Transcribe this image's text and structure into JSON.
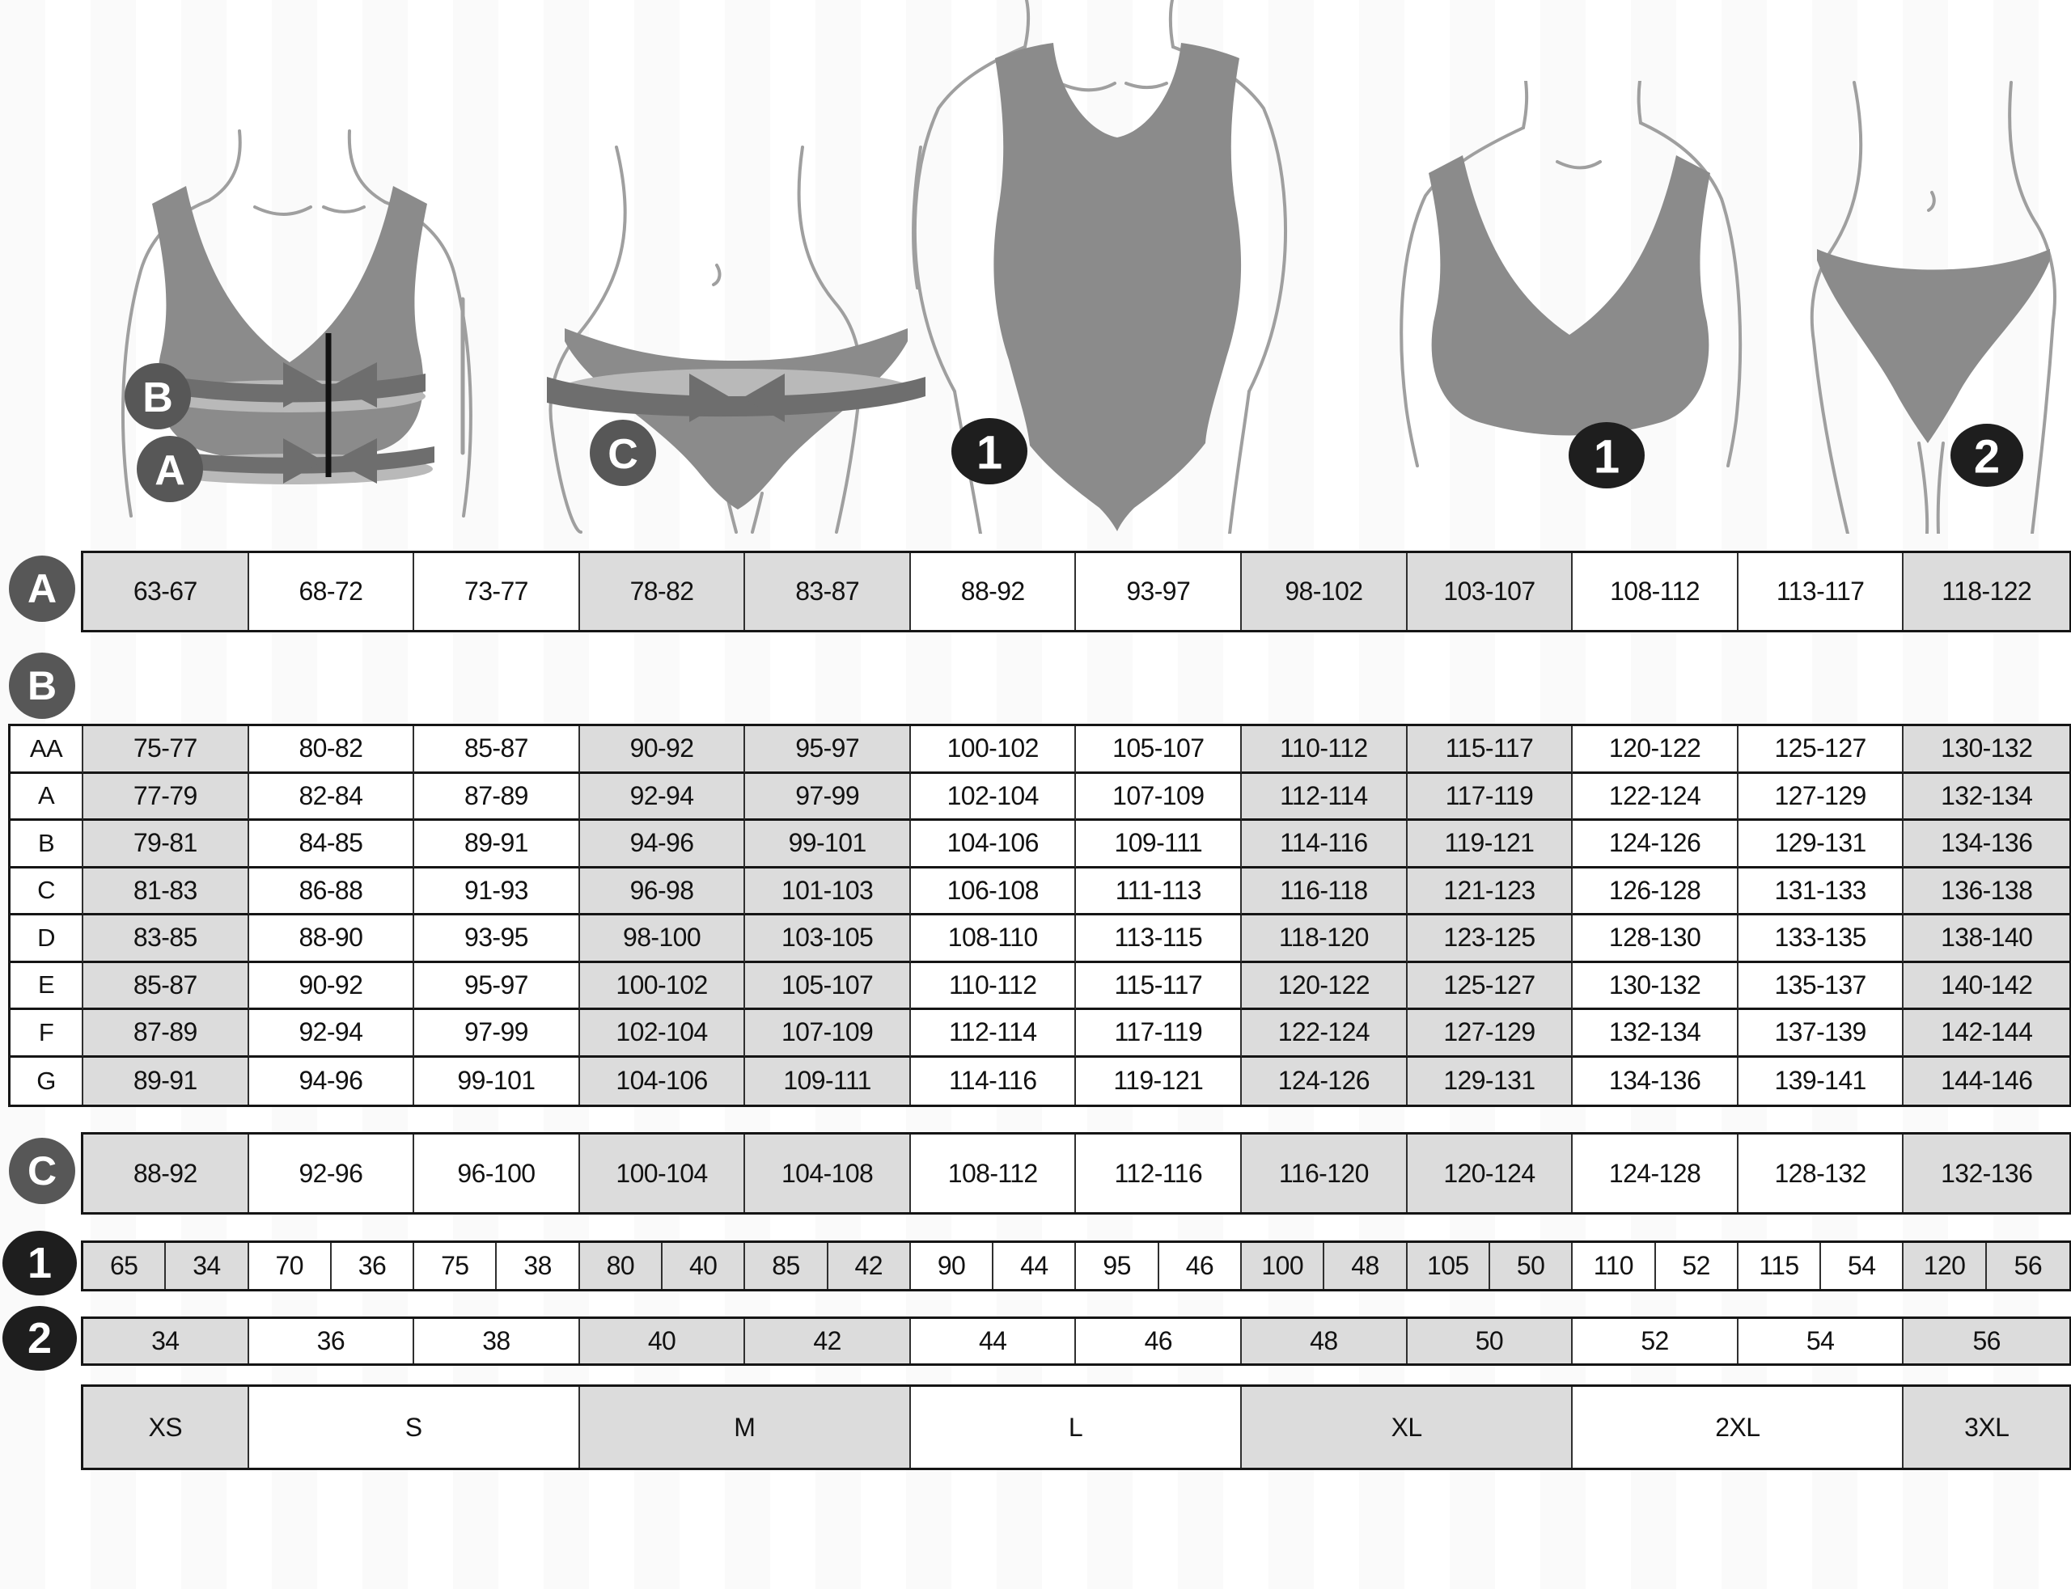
{
  "chart": {
    "shaded_columns": [
      1,
      4,
      5,
      8,
      9,
      12
    ],
    "section_a": {
      "label": "A",
      "values": [
        "63-67",
        "68-72",
        "73-77",
        "78-82",
        "83-87",
        "88-92",
        "93-97",
        "98-102",
        "103-107",
        "108-112",
        "113-117",
        "118-122"
      ]
    },
    "section_b": {
      "label": "B",
      "cup_rows": [
        {
          "cup": "AA",
          "values": [
            "75-77",
            "80-82",
            "85-87",
            "90-92",
            "95-97",
            "100-102",
            "105-107",
            "110-112",
            "115-117",
            "120-122",
            "125-127",
            "130-132"
          ]
        },
        {
          "cup": "A",
          "values": [
            "77-79",
            "82-84",
            "87-89",
            "92-94",
            "97-99",
            "102-104",
            "107-109",
            "112-114",
            "117-119",
            "122-124",
            "127-129",
            "132-134"
          ]
        },
        {
          "cup": "B",
          "values": [
            "79-81",
            "84-85",
            "89-91",
            "94-96",
            "99-101",
            "104-106",
            "109-111",
            "114-116",
            "119-121",
            "124-126",
            "129-131",
            "134-136"
          ]
        },
        {
          "cup": "C",
          "values": [
            "81-83",
            "86-88",
            "91-93",
            "96-98",
            "101-103",
            "106-108",
            "111-113",
            "116-118",
            "121-123",
            "126-128",
            "131-133",
            "136-138"
          ]
        },
        {
          "cup": "D",
          "values": [
            "83-85",
            "88-90",
            "93-95",
            "98-100",
            "103-105",
            "108-110",
            "113-115",
            "118-120",
            "123-125",
            "128-130",
            "133-135",
            "138-140"
          ]
        },
        {
          "cup": "E",
          "values": [
            "85-87",
            "90-92",
            "95-97",
            "100-102",
            "105-107",
            "110-112",
            "115-117",
            "120-122",
            "125-127",
            "130-132",
            "135-137",
            "140-142"
          ]
        },
        {
          "cup": "F",
          "values": [
            "87-89",
            "92-94",
            "97-99",
            "102-104",
            "107-109",
            "112-114",
            "117-119",
            "122-124",
            "127-129",
            "132-134",
            "137-139",
            "142-144"
          ]
        },
        {
          "cup": "G",
          "values": [
            "89-91",
            "94-96",
            "99-101",
            "104-106",
            "109-111",
            "114-116",
            "119-121",
            "124-126",
            "129-131",
            "134-136",
            "139-141",
            "144-146"
          ]
        }
      ]
    },
    "section_c": {
      "label": "C",
      "values": [
        "88-92",
        "92-96",
        "96-100",
        "100-104",
        "104-108",
        "108-112",
        "112-116",
        "116-120",
        "120-124",
        "124-128",
        "128-132",
        "132-136"
      ]
    },
    "section_1": {
      "label": "1",
      "pairs": [
        [
          "65",
          "34"
        ],
        [
          "70",
          "36"
        ],
        [
          "75",
          "38"
        ],
        [
          "80",
          "40"
        ],
        [
          "85",
          "42"
        ],
        [
          "90",
          "44"
        ],
        [
          "95",
          "46"
        ],
        [
          "100",
          "48"
        ],
        [
          "105",
          "50"
        ],
        [
          "110",
          "52"
        ],
        [
          "115",
          "54"
        ],
        [
          "120",
          "56"
        ]
      ]
    },
    "section_2": {
      "label": "2",
      "values": [
        "34",
        "36",
        "38",
        "40",
        "42",
        "44",
        "46",
        "48",
        "50",
        "52",
        "54",
        "56"
      ]
    },
    "sizes": [
      {
        "label": "XS",
        "span": 1
      },
      {
        "label": "S",
        "span": 2
      },
      {
        "label": "M",
        "span": 2
      },
      {
        "label": "L",
        "span": 2
      },
      {
        "label": "XL",
        "span": 2
      },
      {
        "label": "2XL",
        "span": 2
      },
      {
        "label": "3XL",
        "span": 1
      }
    ]
  },
  "figures": {
    "bra_measured": {
      "markers": [
        "B",
        "A"
      ]
    },
    "hips_measured": {
      "markers": [
        "C"
      ]
    },
    "bodysuit": {
      "markers": [
        "1"
      ]
    },
    "bra_plain": {
      "markers": [
        "1"
      ]
    },
    "briefs_plain": {
      "markers": [
        "2"
      ]
    }
  },
  "colors": {
    "cell_shaded": "#dcdcdc",
    "cell_white": "#ffffff",
    "border": "#151515",
    "badge_gray": "#575757",
    "badge_black": "#1e1e1e",
    "garment": "#8b8b8b",
    "band_dark": "#6e6e6e",
    "band_light": "#b9b9b9",
    "body_outline": "#9f9f9f",
    "text": "#121212"
  }
}
